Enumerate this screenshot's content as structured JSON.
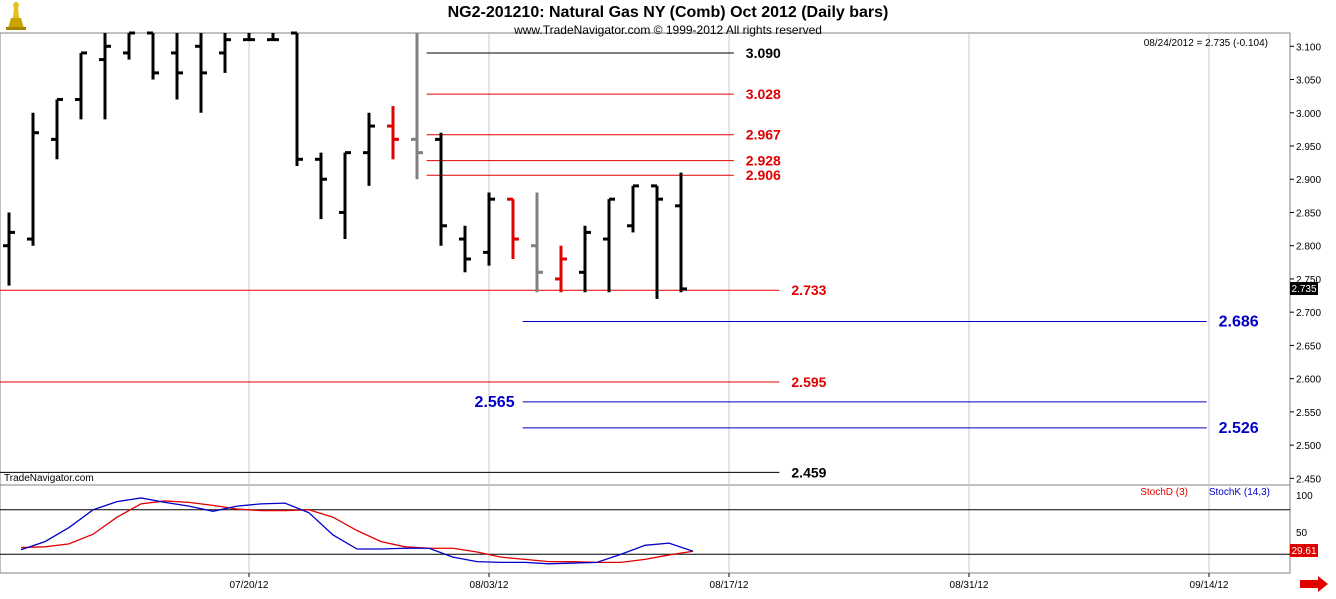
{
  "header": {
    "title": "NG2-201210:  Natural Gas NY (Comb) Oct 2012  (Daily bars)",
    "subtitle": "www.TradeNavigator.com © 1999-2012 All rights reserved",
    "last_readout": "08/24/2012 = 2.735 (-0.104)",
    "watermark": "TradeNavigator.com"
  },
  "colors": {
    "up_bar": "#000000",
    "down_bar": "#e00000",
    "neutral_bar": "#808080",
    "red_level": "#e00000",
    "blue_level": "#0000c8",
    "black_level": "#000000",
    "stochD": "#e00000",
    "stochK": "#0000c8",
    "grid": "#c8c8c8"
  },
  "chart_data": [
    {
      "type": "ohlc",
      "title": "NG2-201210:  Natural Gas NY (Comb) Oct 2012  (Daily bars)",
      "ylim": [
        2.44,
        3.12
      ],
      "yticks": [
        "3.100",
        "3.050",
        "3.000",
        "2.950",
        "2.900",
        "2.850",
        "2.800",
        "2.750",
        "2.700",
        "2.650",
        "2.600",
        "2.550",
        "2.500",
        "2.450"
      ],
      "xticks": [
        {
          "label": "07/20/12",
          "day": 10
        },
        {
          "label": "08/03/12",
          "day": 20
        },
        {
          "label": "08/17/12",
          "day": 30
        },
        {
          "label": "08/31/12",
          "day": 40
        },
        {
          "label": "09/14/12",
          "day": 50
        }
      ],
      "last_price": "2.735",
      "bars": [
        {
          "day": 0,
          "o": 2.8,
          "h": 2.85,
          "l": 2.74,
          "c": 2.82,
          "color": "up"
        },
        {
          "day": 1,
          "o": 2.81,
          "h": 3.0,
          "l": 2.8,
          "c": 2.97,
          "color": "up"
        },
        {
          "day": 2,
          "o": 2.96,
          "h": 3.02,
          "l": 2.93,
          "c": 3.02,
          "color": "up"
        },
        {
          "day": 3,
          "o": 3.02,
          "h": 3.09,
          "l": 2.99,
          "c": 3.09,
          "color": "up"
        },
        {
          "day": 4,
          "o": 3.08,
          "h": 3.12,
          "l": 2.99,
          "c": 3.1,
          "color": "up"
        },
        {
          "day": 5,
          "o": 3.09,
          "h": 3.12,
          "l": 3.08,
          "c": 3.12,
          "color": "up"
        },
        {
          "day": 6,
          "o": 3.12,
          "h": 3.12,
          "l": 3.05,
          "c": 3.06,
          "color": "up"
        },
        {
          "day": 7,
          "o": 3.09,
          "h": 3.12,
          "l": 3.02,
          "c": 3.06,
          "color": "up"
        },
        {
          "day": 8,
          "o": 3.1,
          "h": 3.12,
          "l": 3.0,
          "c": 3.06,
          "color": "up"
        },
        {
          "day": 9,
          "o": 3.09,
          "h": 3.12,
          "l": 3.06,
          "c": 3.11,
          "color": "up"
        },
        {
          "day": 10,
          "o": 3.11,
          "h": 3.12,
          "l": 3.11,
          "c": 3.11,
          "color": "up"
        },
        {
          "day": 11,
          "o": 3.11,
          "h": 3.12,
          "l": 3.11,
          "c": 3.11,
          "color": "up"
        },
        {
          "day": 12,
          "o": 3.12,
          "h": 3.12,
          "l": 2.92,
          "c": 2.93,
          "color": "up"
        },
        {
          "day": 13,
          "o": 2.93,
          "h": 2.94,
          "l": 2.84,
          "c": 2.9,
          "color": "up"
        },
        {
          "day": 14,
          "o": 2.85,
          "h": 2.94,
          "l": 2.81,
          "c": 2.94,
          "color": "up"
        },
        {
          "day": 15,
          "o": 2.94,
          "h": 3.0,
          "l": 2.89,
          "c": 2.98,
          "color": "up"
        },
        {
          "day": 16,
          "o": 2.98,
          "h": 3.01,
          "l": 2.93,
          "c": 2.96,
          "color": "down"
        },
        {
          "day": 17,
          "o": 2.96,
          "h": 3.12,
          "l": 2.9,
          "c": 2.94,
          "color": "neutral"
        },
        {
          "day": 18,
          "o": 2.96,
          "h": 2.97,
          "l": 2.8,
          "c": 2.83,
          "color": "up"
        },
        {
          "day": 19,
          "o": 2.81,
          "h": 2.83,
          "l": 2.76,
          "c": 2.78,
          "color": "up"
        },
        {
          "day": 20,
          "o": 2.79,
          "h": 2.88,
          "l": 2.77,
          "c": 2.87,
          "color": "up"
        },
        {
          "day": 21,
          "o": 2.87,
          "h": 2.87,
          "l": 2.78,
          "c": 2.81,
          "color": "down"
        },
        {
          "day": 22,
          "o": 2.8,
          "h": 2.88,
          "l": 2.73,
          "c": 2.76,
          "color": "neutral"
        },
        {
          "day": 23,
          "o": 2.75,
          "h": 2.8,
          "l": 2.73,
          "c": 2.78,
          "color": "down"
        },
        {
          "day": 24,
          "o": 2.76,
          "h": 2.83,
          "l": 2.73,
          "c": 2.82,
          "color": "up"
        },
        {
          "day": 25,
          "o": 2.81,
          "h": 2.87,
          "l": 2.73,
          "c": 2.87,
          "color": "up"
        },
        {
          "day": 26,
          "o": 2.83,
          "h": 2.89,
          "l": 2.82,
          "c": 2.89,
          "color": "up"
        },
        {
          "day": 27,
          "o": 2.89,
          "h": 2.89,
          "l": 2.72,
          "c": 2.87,
          "color": "up"
        },
        {
          "day": 28,
          "o": 2.86,
          "h": 2.91,
          "l": 2.73,
          "c": 2.735,
          "color": "up"
        }
      ],
      "levels": [
        {
          "value": 3.09,
          "label": "3.090",
          "color": "black",
          "x_from_day": 17.4,
          "x_to_day": 30.2,
          "label_side": "right"
        },
        {
          "value": 3.028,
          "label": "3.028",
          "color": "red",
          "x_from_day": 17.4,
          "x_to_day": 30.2,
          "label_side": "right"
        },
        {
          "value": 2.967,
          "label": "2.967",
          "color": "red",
          "x_from_day": 17.4,
          "x_to_day": 30.2,
          "label_side": "right"
        },
        {
          "value": 2.928,
          "label": "2.928",
          "color": "red",
          "x_from_day": 17.4,
          "x_to_day": 30.2,
          "label_side": "right"
        },
        {
          "value": 2.906,
          "label": "2.906",
          "color": "red",
          "x_from_day": 17.4,
          "x_to_day": 30.2,
          "label_side": "right"
        },
        {
          "value": 2.733,
          "label": "2.733",
          "color": "red",
          "x_from_day": -0.5,
          "x_to_day": 32.1,
          "label_side": "right"
        },
        {
          "value": 2.686,
          "label": "2.686",
          "color": "blue",
          "x_from_day": 21.4,
          "x_to_day": 49.9,
          "label_side": "right"
        },
        {
          "value": 2.595,
          "label": "2.595",
          "color": "red",
          "x_from_day": -0.5,
          "x_to_day": 32.1,
          "label_side": "right"
        },
        {
          "value": 2.565,
          "label": "2.565",
          "color": "blue",
          "x_from_day": 21.4,
          "x_to_day": 49.9,
          "label_side": "left"
        },
        {
          "value": 2.526,
          "label": "2.526",
          "color": "blue",
          "x_from_day": 21.4,
          "x_to_day": 49.9,
          "label_side": "right"
        },
        {
          "value": 2.459,
          "label": "2.459",
          "color": "black",
          "x_from_day": -0.5,
          "x_to_day": 32.1,
          "label_side": "right"
        }
      ]
    },
    {
      "type": "line",
      "title": "",
      "ylim": [
        0,
        100
      ],
      "yticks": [
        "100",
        "50"
      ],
      "reference_lines": [
        80,
        20
      ],
      "last_value": "29.61",
      "series": [
        {
          "name": "StochD (3)",
          "color": "red",
          "values": [
            29,
            30,
            34,
            47,
            70,
            88,
            92,
            90,
            86,
            81,
            79,
            79,
            80,
            70,
            52,
            37,
            30,
            28,
            28,
            23,
            16,
            13,
            10,
            10,
            9,
            9,
            13,
            19,
            24
          ]
        },
        {
          "name": "StochK (14,3)",
          "color": "blue",
          "values": [
            26,
            37,
            56,
            80,
            91,
            96,
            90,
            85,
            78,
            85,
            88,
            89,
            76,
            46,
            27,
            27,
            28,
            28,
            16,
            10,
            9,
            9,
            7,
            8,
            9,
            20,
            32,
            35,
            24
          ]
        }
      ]
    }
  ]
}
